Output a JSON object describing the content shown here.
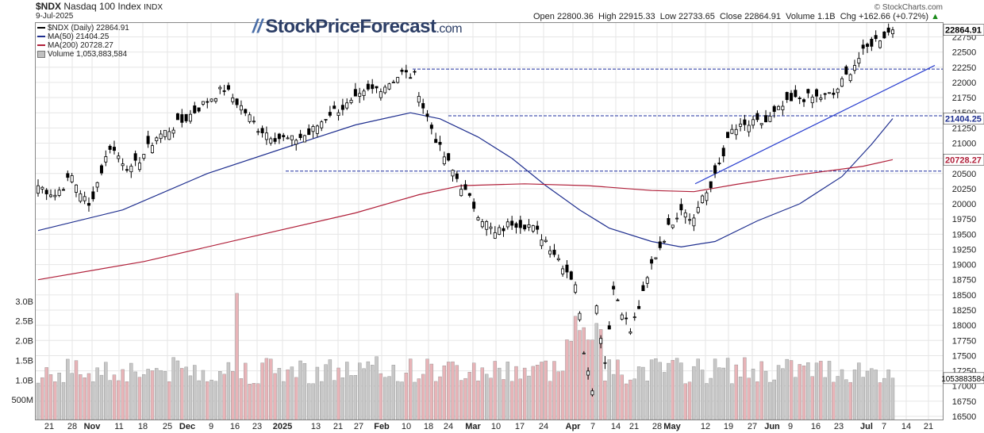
{
  "header": {
    "ticker": "$NDX",
    "index_name": "Nasdaq 100 Index",
    "exchange": "INDX",
    "date": "9-Jul-2025",
    "open_label": "Open",
    "open": "22800.36",
    "high_label": "High",
    "high": "22915.33",
    "low_label": "Low",
    "low": "22733.65",
    "close_label": "Close",
    "close": "22864.91",
    "volume_label": "Volume",
    "volume": "1.1B",
    "chg_label": "Chg",
    "chg": "+162.66 (+0.72%)",
    "chg_icon": "up-triangle-icon",
    "copyright": "© StockCharts.com"
  },
  "logo": {
    "name": "StockPriceForecast",
    "suffix": ".com",
    "color": "#2c3e66"
  },
  "legend": {
    "price": "$NDX (Daily) 22864.91",
    "ma50": "MA(50) 21404.25",
    "ma200": "MA(200) 20728.27",
    "volume": "Volume 1,053,883,584"
  },
  "chart_data": {
    "type": "candlestick",
    "colors": {
      "ma50": "#1f2f8f",
      "ma200": "#b0203a",
      "up_volume": "#c8c8c8",
      "down_volume": "#e8b4b8",
      "trendline": "#2a3fcf",
      "price_tag": "#000000",
      "ma200_tag": "#b0203a"
    },
    "y_axis": {
      "min": 16500,
      "max": 22900,
      "ticks": [
        "22750",
        "22500",
        "22250",
        "22000",
        "21750",
        "21500",
        "21250",
        "21000",
        "20750",
        "20500",
        "20250",
        "20000",
        "19750",
        "19500",
        "19250",
        "19000",
        "18750",
        "18500",
        "18250",
        "18000",
        "17750",
        "17500",
        "17250",
        "17000",
        "16750",
        "16500"
      ],
      "price_tag": "22864.91",
      "ma50_tag": "21404.25",
      "ma200_tag": "20728.27",
      "volume_tag": "1053883584"
    },
    "volume_axis": {
      "ticks": [
        "3.0B",
        "2.5B",
        "2.0B",
        "1.5B",
        "1.0B",
        "500M"
      ],
      "max": 3.5
    },
    "x_labels": [
      "21",
      "28",
      "Nov",
      "11",
      "18",
      "25",
      "Dec",
      "9",
      "16",
      "23",
      "2025",
      "13",
      "21",
      "27",
      "Feb",
      "10",
      "18",
      "24",
      "Mar",
      "10",
      "17",
      "24",
      "Apr",
      "7",
      "14",
      "21",
      "28",
      "May",
      "12",
      "19",
      "27",
      "Jun",
      "9",
      "16",
      "23",
      "Jul",
      "7",
      "14",
      "21"
    ],
    "horizontal_levels": [
      22220,
      21450,
      20540
    ],
    "trendline": {
      "from": [
        "May 12",
        20330
      ],
      "to": [
        "Jul 18",
        22280
      ]
    },
    "ma50_end": 21404.25,
    "ma200_end": 20728.27,
    "last": {
      "open": 22800.36,
      "high": 22915.33,
      "low": 22733.65,
      "close": 22864.91
    }
  }
}
